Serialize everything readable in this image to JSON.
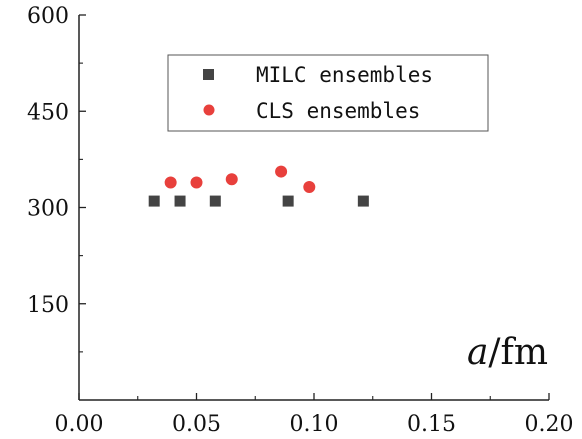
{
  "chart_data": {
    "type": "scatter",
    "title": "",
    "xlabel_var": "a",
    "xlabel_unit": "/fm",
    "ylabel": "",
    "xlim": [
      0.0,
      0.2
    ],
    "ylim": [
      0,
      600
    ],
    "x_ticks": [
      0.0,
      0.05,
      0.1,
      0.15,
      0.2
    ],
    "x_tick_labels": [
      "0.00",
      "0.05",
      "0.10",
      "0.15",
      "0.20"
    ],
    "y_ticks": [
      150,
      300,
      450,
      600
    ],
    "y_tick_labels": [
      "150",
      "300",
      "450",
      "600"
    ],
    "grid": false,
    "legend_position": "top-right",
    "series": [
      {
        "name": "MILC ensembles",
        "marker": "square",
        "color": "#444444",
        "points": [
          {
            "x": 0.032,
            "y": 310
          },
          {
            "x": 0.043,
            "y": 310
          },
          {
            "x": 0.058,
            "y": 310
          },
          {
            "x": 0.089,
            "y": 310
          },
          {
            "x": 0.121,
            "y": 310
          }
        ]
      },
      {
        "name": "CLS ensembles",
        "marker": "circle",
        "color": "#e8403c",
        "points": [
          {
            "x": 0.039,
            "y": 339
          },
          {
            "x": 0.05,
            "y": 339
          },
          {
            "x": 0.065,
            "y": 344
          },
          {
            "x": 0.086,
            "y": 356
          },
          {
            "x": 0.098,
            "y": 332
          }
        ]
      }
    ]
  }
}
